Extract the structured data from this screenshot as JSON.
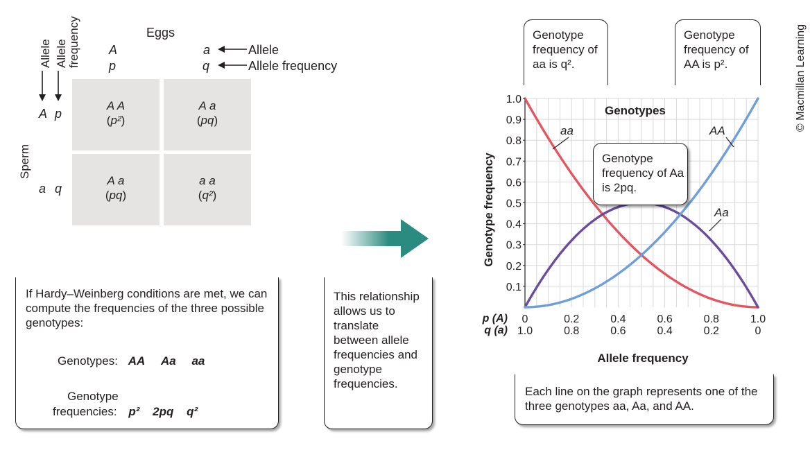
{
  "punnett": {
    "eggs_label": "Eggs",
    "col_alleles": [
      "A",
      "a"
    ],
    "col_freqs": [
      "p",
      "q"
    ],
    "allele_label": "Allele",
    "allele_freq_label": "Allele frequency",
    "row_header_allele": "Allele",
    "row_header_freq": "Allele\nfrequency",
    "sperm_label": "Sperm",
    "row_alleles": [
      "A",
      "a"
    ],
    "row_freqs": [
      "p",
      "q"
    ],
    "cells": [
      {
        "genotype": "A A",
        "freq": "p²"
      },
      {
        "genotype": "A a",
        "freq": "pq"
      },
      {
        "genotype": "A a",
        "freq": "pq"
      },
      {
        "genotype": "a a",
        "freq": "q²"
      }
    ]
  },
  "conditions_box": {
    "text": "If Hardy–Weinberg conditions are met, we can compute the frequencies of the three possible genotypes:",
    "genotypes_label": "Genotypes:",
    "genotypes": [
      "AA",
      "Aa",
      "aa"
    ],
    "freqs_label_1": "Genotype",
    "freqs_label_2": "frequencies:",
    "freqs": [
      "p²",
      "2pq",
      "q²"
    ]
  },
  "relationship_box": {
    "text": "This relationship allows us to translate between allele frequencies and genotype frequencies."
  },
  "callouts": {
    "aa": "Genotype frequency of aa is q².",
    "AA": "Genotype frequency of AA is p².",
    "Aa": "Genotype frequency of Aa is 2pq.",
    "bottom": "Each line on the graph represents one of the three genotypes aa, Aa, and AA."
  },
  "copyright": "© Macmillan Learning",
  "colors": {
    "aa": "#e4555f",
    "Aa": "#6b4c9a",
    "AA": "#6e9fd8",
    "arrow": "#2c8b80",
    "cell": "#e6e4e3"
  },
  "chart_data": {
    "type": "line",
    "title": "Genotypes",
    "xlabel": "Allele frequency",
    "ylabel": "Genotype frequency",
    "x_axis_p_label": "p (A)",
    "x_axis_q_label": "q (a)",
    "x_ticks_p": [
      "0",
      "0.2",
      "0.4",
      "0.6",
      "0.8",
      "1.0"
    ],
    "x_ticks_q": [
      "1.0",
      "0.8",
      "0.6",
      "0.4",
      "0.2",
      "0"
    ],
    "y_ticks": [
      "1.0",
      "0.9",
      "0.8",
      "0.7",
      "0.6",
      "0.5",
      "0.4",
      "0.3",
      "0.2",
      "0.1"
    ],
    "xlim": [
      0,
      1
    ],
    "ylim": [
      0,
      1
    ],
    "grid": true,
    "x": [
      0,
      0.1,
      0.2,
      0.3,
      0.4,
      0.5,
      0.6,
      0.7,
      0.8,
      0.9,
      1.0
    ],
    "series": [
      {
        "name": "aa",
        "values": [
          1.0,
          0.81,
          0.64,
          0.49,
          0.36,
          0.25,
          0.16,
          0.09,
          0.04,
          0.01,
          0.0
        ]
      },
      {
        "name": "Aa",
        "values": [
          0.0,
          0.18,
          0.32,
          0.42,
          0.48,
          0.5,
          0.48,
          0.42,
          0.32,
          0.18,
          0.0
        ]
      },
      {
        "name": "AA",
        "values": [
          0.0,
          0.01,
          0.04,
          0.09,
          0.16,
          0.25,
          0.36,
          0.49,
          0.64,
          0.81,
          1.0
        ]
      }
    ]
  }
}
